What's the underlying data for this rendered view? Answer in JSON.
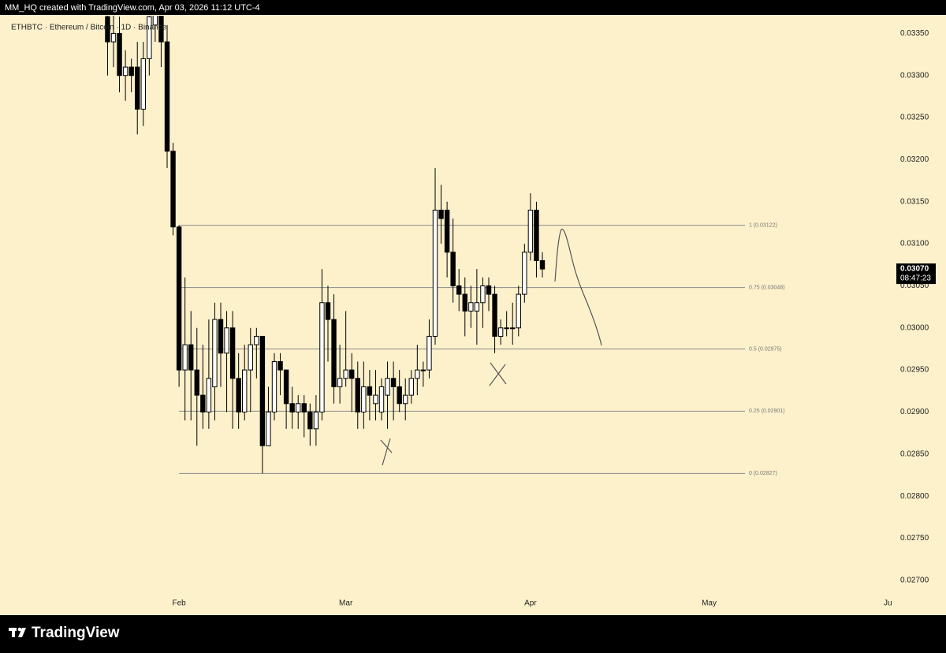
{
  "header": {
    "caption": "MM_HQ created with TradingView.com, Apr 03, 2026 11:12 UTC-4"
  },
  "footer": {
    "brand": "TradingView"
  },
  "chart_data": {
    "type": "candlestick",
    "title": "ETHBTC · Ethereum / Bitcoin · 1D · Binance",
    "up_color": "#ffffff",
    "down_color": "#000000",
    "candles": [
      [
        0.0337,
        0.034,
        0.033,
        0.0334
      ],
      [
        0.0334,
        0.0338,
        0.0331,
        0.0335
      ],
      [
        0.0335,
        0.0337,
        0.0328,
        0.033
      ],
      [
        0.033,
        0.0333,
        0.0327,
        0.0331
      ],
      [
        0.0331,
        0.0332,
        0.0328,
        0.033
      ],
      [
        0.0331,
        0.0334,
        0.0323,
        0.0326
      ],
      [
        0.0326,
        0.0334,
        0.0324,
        0.0332
      ],
      [
        0.0332,
        0.034,
        0.033,
        0.0337
      ],
      [
        0.0336,
        0.0341,
        0.0334,
        0.034
      ],
      [
        0.034,
        0.0341,
        0.0331,
        0.0334
      ],
      [
        0.0334,
        0.0336,
        0.0319,
        0.0321
      ],
      [
        0.0321,
        0.0322,
        0.0311,
        0.0312
      ],
      [
        0.0312,
        0.03122,
        0.0293,
        0.0295
      ],
      [
        0.0295,
        0.0306,
        0.0289,
        0.0298
      ],
      [
        0.0298,
        0.0302,
        0.0289,
        0.0295
      ],
      [
        0.0295,
        0.03,
        0.0286,
        0.0292
      ],
      [
        0.0292,
        0.0298,
        0.0288,
        0.029
      ],
      [
        0.029,
        0.0301,
        0.0288,
        0.0294
      ],
      [
        0.0293,
        0.0303,
        0.0289,
        0.0301
      ],
      [
        0.0301,
        0.0303,
        0.0293,
        0.0297
      ],
      [
        0.0297,
        0.0302,
        0.029,
        0.03
      ],
      [
        0.03,
        0.0302,
        0.0288,
        0.0294
      ],
      [
        0.0294,
        0.0297,
        0.0288,
        0.029
      ],
      [
        0.029,
        0.0298,
        0.0289,
        0.0295
      ],
      [
        0.0295,
        0.03,
        0.029,
        0.0298
      ],
      [
        0.0298,
        0.03,
        0.0294,
        0.0299
      ],
      [
        0.0299,
        0.0299,
        0.02827,
        0.0286
      ],
      [
        0.0286,
        0.0293,
        0.0286,
        0.029
      ],
      [
        0.029,
        0.0297,
        0.0289,
        0.0296
      ],
      [
        0.0296,
        0.0297,
        0.0292,
        0.0295
      ],
      [
        0.0295,
        0.0295,
        0.0288,
        0.0291
      ],
      [
        0.0291,
        0.0293,
        0.0288,
        0.029
      ],
      [
        0.029,
        0.0292,
        0.0288,
        0.0291
      ],
      [
        0.0291,
        0.0292,
        0.0287,
        0.029
      ],
      [
        0.029,
        0.0291,
        0.0286,
        0.0288
      ],
      [
        0.0288,
        0.0292,
        0.0286,
        0.029
      ],
      [
        0.029,
        0.0307,
        0.0289,
        0.0303
      ],
      [
        0.0303,
        0.0305,
        0.0296,
        0.0301
      ],
      [
        0.0301,
        0.0304,
        0.0291,
        0.0293
      ],
      [
        0.0293,
        0.0298,
        0.0291,
        0.0294
      ],
      [
        0.0294,
        0.0302,
        0.0293,
        0.0295
      ],
      [
        0.0295,
        0.0297,
        0.029,
        0.0294
      ],
      [
        0.0294,
        0.0296,
        0.0288,
        0.029
      ],
      [
        0.029,
        0.0296,
        0.0288,
        0.0293
      ],
      [
        0.0293,
        0.0295,
        0.0289,
        0.0292
      ],
      [
        0.0291,
        0.0295,
        0.0289,
        0.0292
      ],
      [
        0.029,
        0.0294,
        0.0289,
        0.0293
      ],
      [
        0.0292,
        0.0296,
        0.0288,
        0.0294
      ],
      [
        0.0294,
        0.0296,
        0.0289,
        0.0293
      ],
      [
        0.0293,
        0.0295,
        0.029,
        0.0291
      ],
      [
        0.0291,
        0.0294,
        0.0289,
        0.0292
      ],
      [
        0.0292,
        0.0295,
        0.0291,
        0.0294
      ],
      [
        0.0294,
        0.0298,
        0.0292,
        0.0295
      ],
      [
        0.0295,
        0.0296,
        0.0293,
        0.0295
      ],
      [
        0.0295,
        0.0301,
        0.0294,
        0.0299
      ],
      [
        0.0299,
        0.0319,
        0.0298,
        0.0314
      ],
      [
        0.0314,
        0.0317,
        0.031,
        0.0313
      ],
      [
        0.0314,
        0.0315,
        0.0306,
        0.0309
      ],
      [
        0.0309,
        0.0313,
        0.0303,
        0.0305
      ],
      [
        0.0305,
        0.0307,
        0.0302,
        0.0304
      ],
      [
        0.0304,
        0.0306,
        0.0299,
        0.0302
      ],
      [
        0.0302,
        0.0305,
        0.03,
        0.0303
      ],
      [
        0.0302,
        0.0307,
        0.0298,
        0.0303
      ],
      [
        0.0303,
        0.0306,
        0.03,
        0.0305
      ],
      [
        0.0305,
        0.0306,
        0.0302,
        0.0304
      ],
      [
        0.0304,
        0.0305,
        0.0297,
        0.0299
      ],
      [
        0.0299,
        0.0301,
        0.0298,
        0.03
      ],
      [
        0.03,
        0.0302,
        0.0299,
        0.03
      ],
      [
        0.03,
        0.0303,
        0.0298,
        0.03
      ],
      [
        0.03,
        0.0305,
        0.0299,
        0.0304
      ],
      [
        0.0304,
        0.031,
        0.0303,
        0.0309
      ],
      [
        0.0309,
        0.0316,
        0.0308,
        0.0314
      ],
      [
        0.0314,
        0.0315,
        0.0306,
        0.0308
      ],
      [
        0.0308,
        0.0309,
        0.0306,
        0.0307
      ]
    ],
    "xlim": [
      -17,
      131.5
    ],
    "xticks": [
      {
        "value": 12,
        "label": "Feb"
      },
      {
        "value": 40,
        "label": "Mar"
      },
      {
        "value": 71,
        "label": "Apr"
      },
      {
        "value": 101,
        "label": "May"
      },
      {
        "value": 131,
        "label": "Ju"
      }
    ],
    "ylim": [
      0.02682,
      0.03371
    ],
    "yticks": [
      {
        "value": 0.027,
        "label": "0.02700"
      },
      {
        "value": 0.0275,
        "label": "0.02750"
      },
      {
        "value": 0.028,
        "label": "0.02800"
      },
      {
        "value": 0.0285,
        "label": "0.02850"
      },
      {
        "value": 0.029,
        "label": "0.02900"
      },
      {
        "value": 0.0295,
        "label": "0.02950"
      },
      {
        "value": 0.03,
        "label": "0.03000"
      },
      {
        "value": 0.0305,
        "label": "0.03050"
      },
      {
        "value": 0.031,
        "label": "0.03100"
      },
      {
        "value": 0.0315,
        "label": "0.03150"
      },
      {
        "value": 0.032,
        "label": "0.03200"
      },
      {
        "value": 0.0325,
        "label": "0.03250"
      },
      {
        "value": 0.033,
        "label": "0.03300"
      },
      {
        "value": 0.0335,
        "label": "0.03350"
      }
    ],
    "fib_levels": [
      {
        "value": 0.03122,
        "label": "1 (0.03122)"
      },
      {
        "value": 0.03048,
        "label": "0.75 (0.03048)"
      },
      {
        "value": 0.02975,
        "label": "0.5 (0.02975)"
      },
      {
        "value": 0.02901,
        "label": "0.25 (0.02901)"
      },
      {
        "value": 0.02827,
        "label": "0 (0.02827)"
      }
    ],
    "last_price": {
      "value": 0.0307,
      "label": "0.03070"
    },
    "countdown": "08:47:23"
  }
}
